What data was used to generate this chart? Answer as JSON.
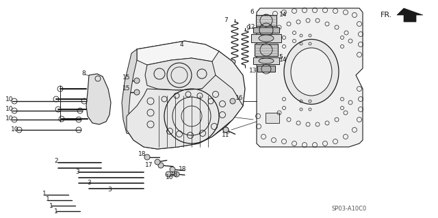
{
  "bg_color": "#ffffff",
  "line_color": "#1a1a1a",
  "label_color": "#1a1a1a",
  "diagram_code": "SP03-A10C0",
  "fr_label": "FR.",
  "figsize": [
    6.4,
    3.19
  ],
  "dpi": 100
}
